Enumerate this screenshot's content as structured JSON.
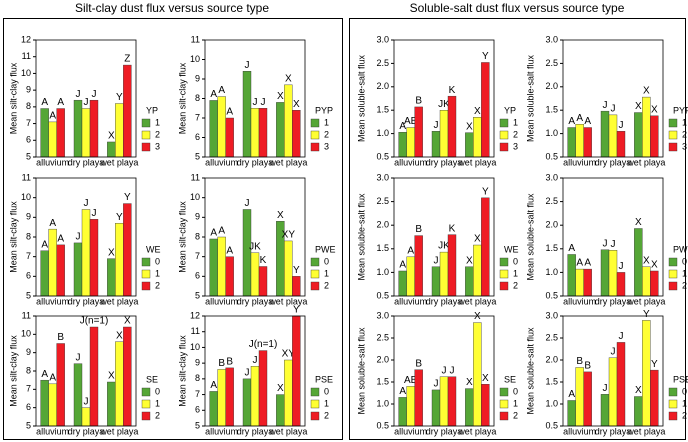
{
  "figure": {
    "titles": [
      "Silt-clay dust flux versus source type",
      "Soluble-salt dust flux versus source type"
    ]
  },
  "chart_data": [
    {
      "type": "bar",
      "ylabel": "Mean silt-clay flux",
      "legend_title": "YP",
      "categories": [
        "alluvium",
        "dry playa",
        "wet playa"
      ],
      "ylim": [
        5,
        12
      ],
      "yticks": [
        5,
        6,
        7,
        8,
        9,
        10,
        11,
        12
      ],
      "series": [
        {
          "name": "1",
          "color": "#55a636",
          "values": [
            7.9,
            8.4,
            5.9
          ],
          "letters": [
            "A",
            "J",
            "X"
          ]
        },
        {
          "name": "2",
          "color": "#ffff33",
          "values": [
            7.1,
            7.9,
            8.2
          ],
          "letters": [
            "A",
            "J",
            "Y"
          ]
        },
        {
          "name": "3",
          "color": "#ee1c24",
          "values": [
            7.9,
            8.4,
            10.5
          ],
          "letters": [
            "A",
            "J",
            "Z"
          ]
        }
      ]
    },
    {
      "type": "bar",
      "ylabel": "Mean silt-clay flux",
      "legend_title": "PYP",
      "categories": [
        "alluvium",
        "dry playa",
        "wet playa"
      ],
      "ylim": [
        5,
        11
      ],
      "yticks": [
        5,
        6,
        7,
        8,
        9,
        10,
        11
      ],
      "series": [
        {
          "name": "1",
          "color": "#55a636",
          "values": [
            7.9,
            9.4,
            7.8
          ],
          "letters": [
            "A",
            "J",
            "X"
          ]
        },
        {
          "name": "2",
          "color": "#ffff33",
          "values": [
            8.1,
            7.5,
            8.7
          ],
          "letters": [
            "A",
            "J",
            "X"
          ]
        },
        {
          "name": "3",
          "color": "#ee1c24",
          "values": [
            7.0,
            7.5,
            7.4
          ],
          "letters": [
            "A",
            "J",
            "X"
          ]
        }
      ]
    },
    {
      "type": "bar",
      "ylabel": "Mean silt-clay flux",
      "legend_title": "WE",
      "categories": [
        "alluvium",
        "dry playa",
        "wet playa"
      ],
      "ylim": [
        5,
        11
      ],
      "yticks": [
        5,
        6,
        7,
        8,
        9,
        10,
        11
      ],
      "series": [
        {
          "name": "0",
          "color": "#55a636",
          "values": [
            7.3,
            7.7,
            6.9
          ],
          "letters": [
            "A",
            "J",
            "X"
          ]
        },
        {
          "name": "1",
          "color": "#ffff33",
          "values": [
            8.4,
            9.4,
            8.7
          ],
          "letters": [
            "A",
            "J",
            "Y"
          ]
        },
        {
          "name": "2",
          "color": "#ee1c24",
          "values": [
            7.6,
            8.9,
            9.7
          ],
          "letters": [
            "A",
            "J",
            "Y"
          ]
        }
      ]
    },
    {
      "type": "bar",
      "ylabel": "Mean silt-clay flux",
      "legend_title": "PWE",
      "categories": [
        "alluvium",
        "dry playa",
        "wet playa"
      ],
      "ylim": [
        5,
        11
      ],
      "yticks": [
        5,
        6,
        7,
        8,
        9,
        10,
        11
      ],
      "series": [
        {
          "name": "0",
          "color": "#55a636",
          "values": [
            7.9,
            9.4,
            8.8
          ],
          "letters": [
            "A",
            "J",
            "X"
          ]
        },
        {
          "name": "1",
          "color": "#ffff33",
          "values": [
            8.0,
            7.2,
            7.8
          ],
          "letters": [
            "A",
            "JK",
            "XY"
          ]
        },
        {
          "name": "2",
          "color": "#ee1c24",
          "values": [
            7.0,
            6.5,
            6.0
          ],
          "letters": [
            "A",
            "K",
            "Y"
          ]
        }
      ]
    },
    {
      "type": "bar",
      "ylabel": "Mean silt-clay flux",
      "legend_title": "SE",
      "categories": [
        "alluvium",
        "dry playa",
        "wet playa"
      ],
      "ylim": [
        5,
        11
      ],
      "yticks": [
        5,
        6,
        7,
        8,
        9,
        10,
        11
      ],
      "series": [
        {
          "name": "0",
          "color": "#55a636",
          "values": [
            7.5,
            8.4,
            7.4
          ],
          "letters": [
            "A",
            "J",
            "X"
          ]
        },
        {
          "name": "1",
          "color": "#ffff33",
          "values": [
            7.3,
            6.0,
            9.6
          ],
          "letters": [
            "A",
            "J",
            "X"
          ]
        },
        {
          "name": "2",
          "color": "#ee1c24",
          "values": [
            9.5,
            10.4,
            10.4
          ],
          "letters": [
            "B",
            "J(n=1)",
            "X"
          ]
        }
      ]
    },
    {
      "type": "bar",
      "ylabel": "Mean silt-clay flux",
      "legend_title": "PSE",
      "categories": [
        "alluvium",
        "dry playa",
        "wet playa"
      ],
      "ylim": [
        5,
        12
      ],
      "yticks": [
        5,
        6,
        7,
        8,
        9,
        10,
        11,
        12
      ],
      "series": [
        {
          "name": "0",
          "color": "#55a636",
          "values": [
            7.2,
            8.0,
            7.0
          ],
          "letters": [
            "A",
            "J",
            "X"
          ]
        },
        {
          "name": "1",
          "color": "#ffff33",
          "values": [
            8.6,
            8.8,
            9.2
          ],
          "letters": [
            "B",
            "J",
            "XY"
          ]
        },
        {
          "name": "2",
          "color": "#ee1c24",
          "values": [
            8.7,
            9.8,
            12.0
          ],
          "letters": [
            "B",
            "J(n=1)",
            "Y"
          ]
        }
      ]
    },
    {
      "type": "bar",
      "ylabel": "Mean soluble-salt flux",
      "legend_title": "YP",
      "categories": [
        "alluvium",
        "dry playa",
        "wet playa"
      ],
      "ylim": [
        0.5,
        3
      ],
      "yticks": [
        0.5,
        {
          "value": 1,
          "label": "1.0"
        },
        1.5,
        {
          "value": 2,
          "label": "2.0"
        },
        2.5,
        {
          "value": 3,
          "label": "3.0"
        }
      ],
      "series": [
        {
          "name": "1",
          "color": "#55a636",
          "values": [
            1.03,
            1.05,
            1.02
          ],
          "letters": [
            "A",
            "J",
            "X"
          ]
        },
        {
          "name": "2",
          "color": "#ffff33",
          "values": [
            1.13,
            1.5,
            1.35
          ],
          "letters": [
            "AB",
            "JK",
            "X"
          ]
        },
        {
          "name": "3",
          "color": "#ee1c24",
          "values": [
            1.57,
            1.8,
            2.52
          ],
          "letters": [
            "B",
            "K",
            "Y"
          ]
        }
      ]
    },
    {
      "type": "bar",
      "ylabel": "Mean soluble-salt flux",
      "legend_title": "PYP",
      "categories": [
        "alluvium",
        "dry playa",
        "wet playa"
      ],
      "ylim": [
        0.5,
        3
      ],
      "yticks": [
        0.5,
        {
          "value": 1,
          "label": "1.0"
        },
        1.5,
        {
          "value": 2,
          "label": "2.0"
        },
        2.5,
        {
          "value": 3,
          "label": "3.0"
        }
      ],
      "series": [
        {
          "name": "1",
          "color": "#55a636",
          "values": [
            1.13,
            1.48,
            1.45
          ],
          "letters": [
            "A",
            "J",
            "X"
          ]
        },
        {
          "name": "2",
          "color": "#ffff33",
          "values": [
            1.2,
            1.4,
            1.78
          ],
          "letters": [
            "A",
            "J",
            "X"
          ]
        },
        {
          "name": "3",
          "color": "#ee1c24",
          "values": [
            1.13,
            1.05,
            1.38
          ],
          "letters": [
            "A",
            "J",
            "X"
          ]
        }
      ]
    },
    {
      "type": "bar",
      "ylabel": "Mean soluble-salt flux",
      "legend_title": "WE",
      "categories": [
        "alluvium",
        "dry playa",
        "wet playa"
      ],
      "ylim": [
        0.5,
        3
      ],
      "yticks": [
        0.5,
        {
          "value": 1,
          "label": "1.0"
        },
        1.5,
        {
          "value": 2,
          "label": "2.0"
        },
        2.5,
        {
          "value": 3,
          "label": "3.0"
        }
      ],
      "series": [
        {
          "name": "0",
          "color": "#55a636",
          "values": [
            1.03,
            1.12,
            1.12
          ],
          "letters": [
            "A",
            "J",
            "X"
          ]
        },
        {
          "name": "1",
          "color": "#ffff33",
          "values": [
            1.33,
            1.43,
            1.58
          ],
          "letters": [
            "A",
            "JK",
            "X"
          ]
        },
        {
          "name": "2",
          "color": "#ee1c24",
          "values": [
            1.78,
            1.8,
            2.58
          ],
          "letters": [
            "B",
            "K",
            "Y"
          ]
        }
      ]
    },
    {
      "type": "bar",
      "ylabel": "Mean soluble-salt flux",
      "legend_title": "PWE",
      "categories": [
        "alluvium",
        "dry playa",
        "wet playa"
      ],
      "ylim": [
        0.5,
        3
      ],
      "yticks": [
        0.5,
        {
          "value": 1,
          "label": "1.0"
        },
        1.5,
        {
          "value": 2,
          "label": "2.0"
        },
        2.5,
        {
          "value": 3,
          "label": "3.0"
        }
      ],
      "series": [
        {
          "name": "0",
          "color": "#55a636",
          "values": [
            1.38,
            1.48,
            1.93
          ],
          "letters": [
            "A",
            "J",
            "X"
          ]
        },
        {
          "name": "1",
          "color": "#ffff33",
          "values": [
            1.07,
            1.47,
            1.12
          ],
          "letters": [
            "A",
            "J",
            "X"
          ]
        },
        {
          "name": "2",
          "color": "#ee1c24",
          "values": [
            1.07,
            1.0,
            1.03
          ],
          "letters": [
            "A",
            "J",
            "X"
          ]
        }
      ]
    },
    {
      "type": "bar",
      "ylabel": "Mean soluble-salt flux",
      "legend_title": "SE",
      "categories": [
        "alluvium",
        "dry playa",
        "wet playa"
      ],
      "ylim": [
        0.5,
        3
      ],
      "yticks": [
        0.5,
        {
          "value": 1,
          "label": "1.0"
        },
        1.5,
        {
          "value": 2,
          "label": "2.0"
        },
        2.5,
        {
          "value": 3,
          "label": "3.0"
        }
      ],
      "series": [
        {
          "name": "0",
          "color": "#55a636",
          "values": [
            1.15,
            1.32,
            1.35
          ],
          "letters": [
            "A",
            "J",
            "X"
          ]
        },
        {
          "name": "1",
          "color": "#ffff33",
          "values": [
            1.4,
            1.62,
            2.85
          ],
          "letters": [
            "AB",
            "J",
            "X"
          ]
        },
        {
          "name": "2",
          "color": "#ee1c24",
          "values": [
            1.78,
            1.62,
            1.45
          ],
          "letters": [
            "B",
            "J",
            "X"
          ]
        }
      ]
    },
    {
      "type": "bar",
      "ylabel": "Mean soluble-salt flux",
      "legend_title": "PSE",
      "categories": [
        "alluvium",
        "dry playa",
        "wet playa"
      ],
      "ylim": [
        0.5,
        3
      ],
      "yticks": [
        0.5,
        {
          "value": 1,
          "label": "1.0"
        },
        1.5,
        {
          "value": 2,
          "label": "2.0"
        },
        2.5,
        {
          "value": 3,
          "label": "3.0"
        }
      ],
      "series": [
        {
          "name": "0",
          "color": "#55a636",
          "values": [
            1.08,
            1.22,
            1.17
          ],
          "letters": [
            "A",
            "J",
            "X"
          ]
        },
        {
          "name": "1",
          "color": "#ffff33",
          "values": [
            1.83,
            2.05,
            2.9
          ],
          "letters": [
            "B",
            "J",
            "Y"
          ]
        },
        {
          "name": "2",
          "color": "#ee1c24",
          "values": [
            1.73,
            2.4,
            1.77
          ],
          "letters": [
            "B",
            "J",
            "Y"
          ]
        }
      ]
    }
  ]
}
